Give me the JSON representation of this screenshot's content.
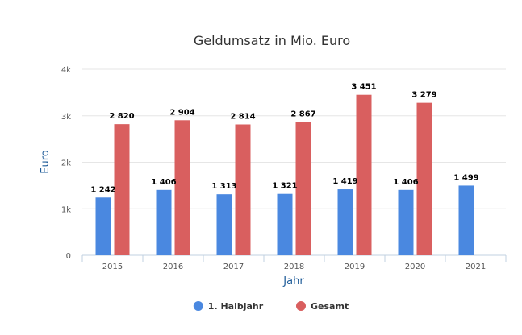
{
  "chart_data": {
    "type": "bar",
    "title": "Geldumsatz in Mio. Euro",
    "xlabel": "Jahr",
    "ylabel": "Euro",
    "categories": [
      "2015",
      "2016",
      "2017",
      "2018",
      "2019",
      "2020",
      "2021"
    ],
    "ylim": [
      0,
      4000
    ],
    "yticks": [
      0,
      1000,
      2000,
      3000,
      4000
    ],
    "ytick_labels": [
      "0",
      "1k",
      "2k",
      "3k",
      "4k"
    ],
    "grid": true,
    "legend_position": "bottom-center",
    "series": [
      {
        "name": "1. Halbjahr",
        "color": "#4a88e0",
        "values": [
          1242,
          1406,
          1313,
          1321,
          1419,
          1406,
          1499
        ],
        "labels": [
          "1 242",
          "1 406",
          "1 313",
          "1 321",
          "1 419",
          "1 406",
          "1 499"
        ]
      },
      {
        "name": "Gesamt",
        "color": "#d95f5f",
        "values": [
          2820,
          2904,
          2814,
          2867,
          3451,
          3279,
          null
        ],
        "labels": [
          "2 820",
          "2 904",
          "2 814",
          "2 867",
          "3 451",
          "3 279",
          null
        ]
      }
    ]
  }
}
